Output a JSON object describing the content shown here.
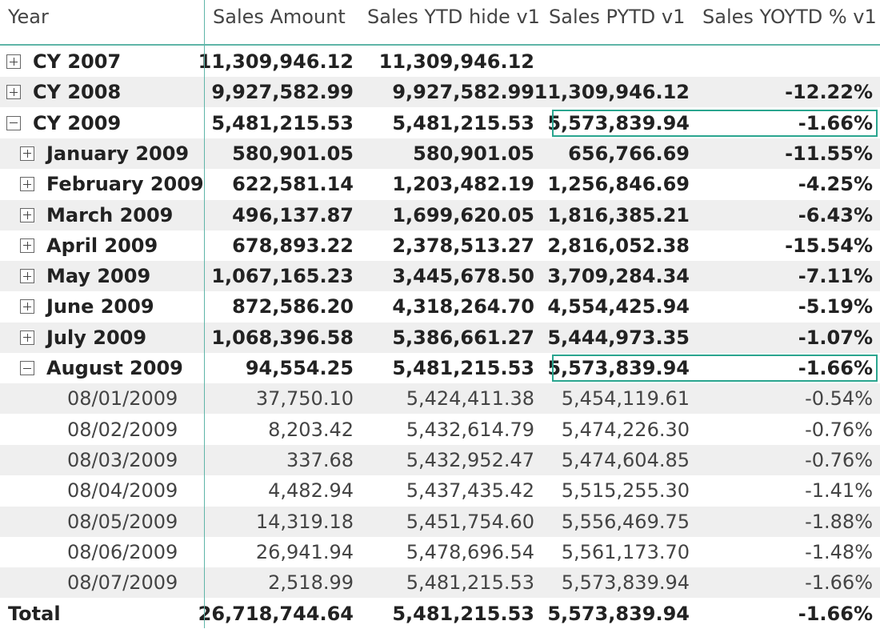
{
  "columns": [
    "Year",
    "Sales Amount",
    "Sales YTD hide v1",
    "Sales PYTD v1",
    "Sales YOYTD % v1"
  ],
  "rows": [
    {
      "label": "CY 2007",
      "level": 0,
      "toggle": "plus",
      "sales_amount": "11,309,946.12",
      "sales_ytd": "11,309,946.12",
      "sales_pytd": "",
      "sales_yoytd": ""
    },
    {
      "label": "CY 2008",
      "level": 0,
      "toggle": "plus",
      "sales_amount": "9,927,582.99",
      "sales_ytd": "9,927,582.99",
      "sales_pytd": "11,309,946.12",
      "sales_yoytd": "-12.22%"
    },
    {
      "label": "CY 2009",
      "level": 0,
      "toggle": "minus",
      "sales_amount": "5,481,215.53",
      "sales_ytd": "5,481,215.53",
      "sales_pytd": "5,573,839.94",
      "sales_yoytd": "-1.66%"
    },
    {
      "label": "January 2009",
      "level": 1,
      "toggle": "plus",
      "sales_amount": "580,901.05",
      "sales_ytd": "580,901.05",
      "sales_pytd": "656,766.69",
      "sales_yoytd": "-11.55%"
    },
    {
      "label": "February 2009",
      "level": 1,
      "toggle": "plus",
      "sales_amount": "622,581.14",
      "sales_ytd": "1,203,482.19",
      "sales_pytd": "1,256,846.69",
      "sales_yoytd": "-4.25%"
    },
    {
      "label": "March 2009",
      "level": 1,
      "toggle": "plus",
      "sales_amount": "496,137.87",
      "sales_ytd": "1,699,620.05",
      "sales_pytd": "1,816,385.21",
      "sales_yoytd": "-6.43%"
    },
    {
      "label": "April 2009",
      "level": 1,
      "toggle": "plus",
      "sales_amount": "678,893.22",
      "sales_ytd": "2,378,513.27",
      "sales_pytd": "2,816,052.38",
      "sales_yoytd": "-15.54%"
    },
    {
      "label": "May 2009",
      "level": 1,
      "toggle": "plus",
      "sales_amount": "1,067,165.23",
      "sales_ytd": "3,445,678.50",
      "sales_pytd": "3,709,284.34",
      "sales_yoytd": "-7.11%"
    },
    {
      "label": "June 2009",
      "level": 1,
      "toggle": "plus",
      "sales_amount": "872,586.20",
      "sales_ytd": "4,318,264.70",
      "sales_pytd": "4,554,425.94",
      "sales_yoytd": "-5.19%"
    },
    {
      "label": "July 2009",
      "level": 1,
      "toggle": "plus",
      "sales_amount": "1,068,396.58",
      "sales_ytd": "5,386,661.27",
      "sales_pytd": "5,444,973.35",
      "sales_yoytd": "-1.07%"
    },
    {
      "label": "August 2009",
      "level": 1,
      "toggle": "minus",
      "sales_amount": "94,554.25",
      "sales_ytd": "5,481,215.53",
      "sales_pytd": "5,573,839.94",
      "sales_yoytd": "-1.66%"
    },
    {
      "label": "08/01/2009",
      "level": 2,
      "toggle": "",
      "sales_amount": "37,750.10",
      "sales_ytd": "5,424,411.38",
      "sales_pytd": "5,454,119.61",
      "sales_yoytd": "-0.54%"
    },
    {
      "label": "08/02/2009",
      "level": 2,
      "toggle": "",
      "sales_amount": "8,203.42",
      "sales_ytd": "5,432,614.79",
      "sales_pytd": "5,474,226.30",
      "sales_yoytd": "-0.76%"
    },
    {
      "label": "08/03/2009",
      "level": 2,
      "toggle": "",
      "sales_amount": "337.68",
      "sales_ytd": "5,432,952.47",
      "sales_pytd": "5,474,604.85",
      "sales_yoytd": "-0.76%"
    },
    {
      "label": "08/04/2009",
      "level": 2,
      "toggle": "",
      "sales_amount": "4,482.94",
      "sales_ytd": "5,437,435.42",
      "sales_pytd": "5,515,255.30",
      "sales_yoytd": "-1.41%"
    },
    {
      "label": "08/05/2009",
      "level": 2,
      "toggle": "",
      "sales_amount": "14,319.18",
      "sales_ytd": "5,451,754.60",
      "sales_pytd": "5,556,469.75",
      "sales_yoytd": "-1.88%"
    },
    {
      "label": "08/06/2009",
      "level": 2,
      "toggle": "",
      "sales_amount": "26,941.94",
      "sales_ytd": "5,478,696.54",
      "sales_pytd": "5,561,173.70",
      "sales_yoytd": "-1.48%"
    },
    {
      "label": "08/07/2009",
      "level": 2,
      "toggle": "",
      "sales_amount": "2,518.99",
      "sales_ytd": "5,481,215.53",
      "sales_pytd": "5,573,839.94",
      "sales_yoytd": "-1.66%"
    }
  ],
  "total": {
    "label": "Total",
    "sales_amount": "26,718,744.64",
    "sales_ytd": "5,481,215.53",
    "sales_pytd": "5,573,839.94",
    "sales_yoytd": "-1.66%"
  },
  "highlighted_rows": [
    "CY 2009",
    "August 2009"
  ],
  "colors": {
    "accent": "#5fb5a8",
    "highlight_border": "#2aa58f",
    "stripe": "#efefef"
  }
}
